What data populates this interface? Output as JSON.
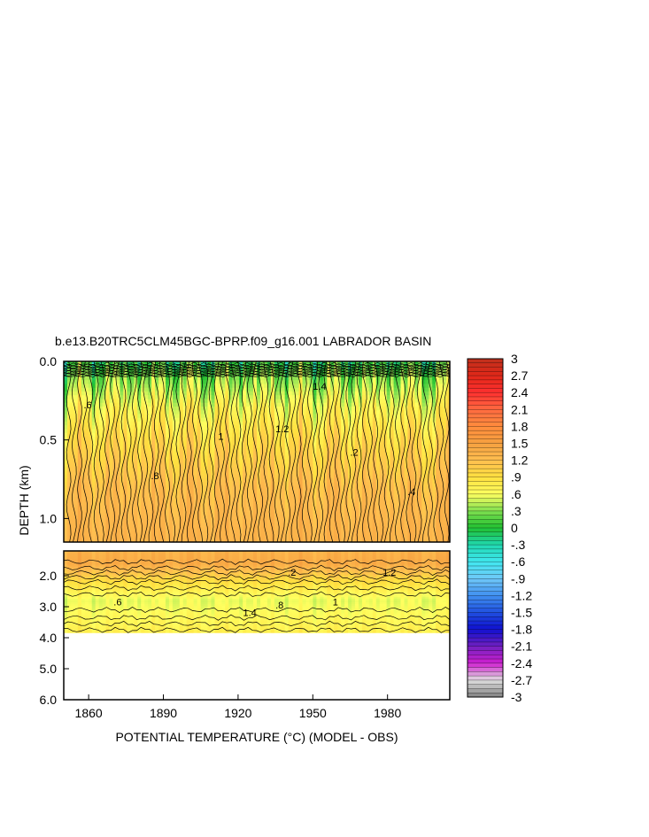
{
  "chart_data": {
    "type": "heatmap",
    "title": "b.e13.B20TRC5CLM45BGC-BPRP.f09_g16.001 LABRADOR BASIN",
    "xlabel": "POTENTIAL TEMPERATURE (°C) (MODEL - OBS)",
    "ylabel": "DEPTH (km)",
    "x_range": [
      1850,
      2005
    ],
    "x_ticks": [
      "1860",
      "1890",
      "1920",
      "1950",
      "1980"
    ],
    "x_tick_values": [
      1860,
      1890,
      1920,
      1950,
      1980
    ],
    "upper_panel": {
      "depth_range_km": [
        0.0,
        1.15
      ],
      "y_ticks": [
        "0.0",
        "0.5",
        "1.0"
      ],
      "y_tick_values": [
        0.0,
        0.5,
        1.0
      ]
    },
    "lower_panel": {
      "depth_range_km": [
        1.2,
        6.0
      ],
      "y_ticks": [
        "2.0",
        "3.0",
        "4.0",
        "5.0",
        "6.0"
      ],
      "y_tick_values": [
        2.0,
        3.0,
        4.0,
        5.0,
        6.0
      ],
      "data_bottom_km": 3.85
    },
    "colorbar": {
      "labels": [
        "3",
        "2.7",
        "2.4",
        "2.1",
        "1.8",
        "1.5",
        "1.2",
        ".9",
        ".6",
        ".3",
        "0",
        "-.3",
        "-.6",
        "-.9",
        "-1.2",
        "-1.5",
        "-1.8",
        "-2.1",
        "-2.4",
        "-2.7",
        "-3"
      ],
      "levels": [
        3,
        2.7,
        2.4,
        2.1,
        1.8,
        1.5,
        1.2,
        0.9,
        0.6,
        0.3,
        0,
        -0.3,
        -0.6,
        -0.9,
        -1.2,
        -1.5,
        -1.8,
        -2.1,
        -2.4,
        -2.7,
        -3
      ],
      "colors": [
        "#c0301c",
        "#e02818",
        "#ff3030",
        "#ff6a40",
        "#ff8c3c",
        "#f6a040",
        "#ffbf50",
        "#ffe040",
        "#ffff60",
        "#80e050",
        "#20c030",
        "#20d8b0",
        "#40e8f0",
        "#70c8f8",
        "#4090f0",
        "#2050e0",
        "#1010d0",
        "#7020c0",
        "#d020d0",
        "#e0e0e0",
        "#808080"
      ]
    },
    "depth_profile": {
      "depth_km": [
        0.0,
        0.05,
        0.15,
        0.3,
        0.5,
        0.8,
        1.1,
        1.6,
        2.2,
        2.8,
        3.3,
        3.85
      ],
      "mean_difference_c": [
        0.0,
        0.2,
        0.4,
        0.7,
        0.95,
        1.2,
        1.3,
        1.4,
        0.9,
        0.55,
        0.65,
        0.75
      ]
    },
    "contour_labels": [
      ".6",
      ".8",
      "1",
      "1.2",
      "1.4",
      ".2",
      ".4"
    ]
  }
}
